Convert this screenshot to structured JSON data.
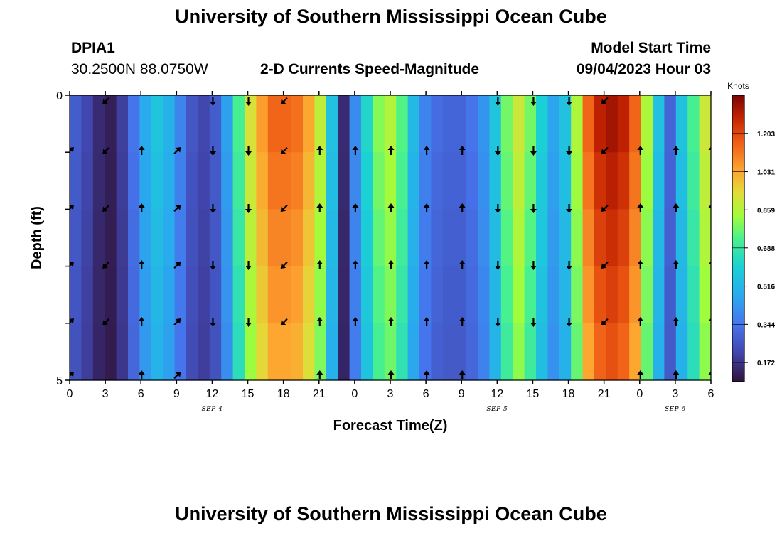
{
  "title": "University of Southern Mississippi Ocean Cube",
  "footer_title": "University of Southern Mississippi Ocean Cube",
  "station": {
    "id": "DPIA1",
    "coords": "30.2500N  88.0750W"
  },
  "plot_title": "2-D Currents Speed-Magnitude",
  "model_start": {
    "label": "Model Start Time",
    "value": "09/04/2023 Hour 03"
  },
  "chart_data": {
    "type": "heatmap",
    "title": "2-D Currents Speed-Magnitude",
    "xlabel": "Forecast Time(Z)",
    "ylabel": "Depth (ft)",
    "y_ticks": [
      "0",
      "5"
    ],
    "ylim": [
      0,
      5
    ],
    "x_tick_labels": [
      "0",
      "3",
      "6",
      "9",
      "12",
      "15",
      "18",
      "21",
      "0",
      "3",
      "6",
      "9",
      "12",
      "15",
      "18",
      "21",
      "0",
      "3",
      "6"
    ],
    "date_labels": [
      {
        "text": "SEP 4",
        "under_tick": 4
      },
      {
        "text": "SEP 5",
        "under_tick": 12
      },
      {
        "text": "SEP 6",
        "under_tick": 17
      }
    ],
    "forecast_hours": [
      0,
      1,
      2,
      3,
      4,
      5,
      6,
      7,
      8,
      9,
      10,
      11,
      12,
      13,
      14,
      15,
      16,
      17,
      18,
      19,
      20,
      21,
      22,
      23,
      24,
      25,
      26,
      27,
      28,
      29,
      30,
      31,
      32,
      33,
      34,
      35,
      36,
      37,
      38,
      39,
      40,
      41,
      42,
      43,
      44,
      45,
      46,
      47,
      48,
      49,
      50,
      51,
      52,
      53,
      54
    ],
    "speed_knots": [
      0.28,
      0.22,
      0.15,
      0.12,
      0.2,
      0.34,
      0.48,
      0.56,
      0.5,
      0.38,
      0.26,
      0.22,
      0.28,
      0.45,
      0.72,
      0.92,
      1.05,
      1.15,
      1.15,
      1.13,
      1.03,
      0.88,
      0.55,
      0.15,
      0.4,
      0.62,
      0.8,
      0.86,
      0.74,
      0.52,
      0.38,
      0.32,
      0.3,
      0.3,
      0.34,
      0.42,
      0.56,
      0.78,
      0.9,
      0.78,
      0.6,
      0.46,
      0.55,
      0.85,
      1.15,
      1.28,
      1.32,
      1.28,
      1.15,
      0.85,
      0.55,
      0.3,
      0.55,
      0.72,
      0.9
    ],
    "depth_rows": [
      0,
      1,
      2,
      3,
      4,
      5
    ],
    "arrow_rows": [
      0,
      1,
      2,
      3,
      4,
      5
    ],
    "arrows": [
      {
        "tick": 0,
        "dir": "NE",
        "rows": [
          1,
          2,
          3,
          4,
          5
        ]
      },
      {
        "tick": 1,
        "dir": "SW",
        "rows": [
          0,
          1,
          2,
          3,
          4
        ]
      },
      {
        "tick": 2,
        "dir": "N",
        "rows": [
          1,
          2,
          3,
          4,
          5
        ]
      },
      {
        "tick": 3,
        "dir": "NE",
        "rows": [
          1,
          2,
          3,
          4,
          5
        ]
      },
      {
        "tick": 4,
        "dir": "S",
        "rows": [
          0,
          1,
          2,
          3,
          4
        ]
      },
      {
        "tick": 5,
        "dir": "S",
        "rows": [
          0,
          1,
          2,
          3,
          4
        ]
      },
      {
        "tick": 6,
        "dir": "SW",
        "rows": [
          0,
          1,
          2,
          3,
          4
        ]
      },
      {
        "tick": 7,
        "dir": "N",
        "rows": [
          1,
          2,
          3,
          4,
          5
        ]
      },
      {
        "tick": 8,
        "dir": "N",
        "rows": [
          1,
          2,
          3,
          4
        ]
      },
      {
        "tick": 9,
        "dir": "N",
        "rows": [
          1,
          2,
          3,
          4,
          5
        ]
      },
      {
        "tick": 10,
        "dir": "N",
        "rows": [
          1,
          2,
          3,
          4,
          5
        ]
      },
      {
        "tick": 11,
        "dir": "N",
        "rows": [
          1,
          2,
          3,
          4,
          5
        ]
      },
      {
        "tick": 12,
        "dir": "S",
        "rows": [
          0,
          1,
          2,
          3,
          4
        ]
      },
      {
        "tick": 13,
        "dir": "S",
        "rows": [
          0,
          1,
          2,
          3,
          4
        ]
      },
      {
        "tick": 14,
        "dir": "S",
        "rows": [
          0,
          1,
          2,
          3,
          4
        ]
      },
      {
        "tick": 15,
        "dir": "SW",
        "rows": [
          0,
          1,
          2,
          3,
          4
        ]
      },
      {
        "tick": 16,
        "dir": "N",
        "rows": [
          1,
          2,
          3,
          4,
          5
        ]
      },
      {
        "tick": 17,
        "dir": "N",
        "rows": [
          1,
          2,
          3,
          4,
          5
        ]
      },
      {
        "tick": 18,
        "dir": "N",
        "rows": [
          1,
          2,
          3,
          4,
          5
        ]
      }
    ],
    "colorbar": {
      "label": "Knots",
      "ticks": [
        "0.172",
        "0.344",
        "0.516",
        "0.688",
        "0.859",
        "1.031",
        "1.203"
      ],
      "range": [
        0.086,
        1.375
      ]
    }
  }
}
